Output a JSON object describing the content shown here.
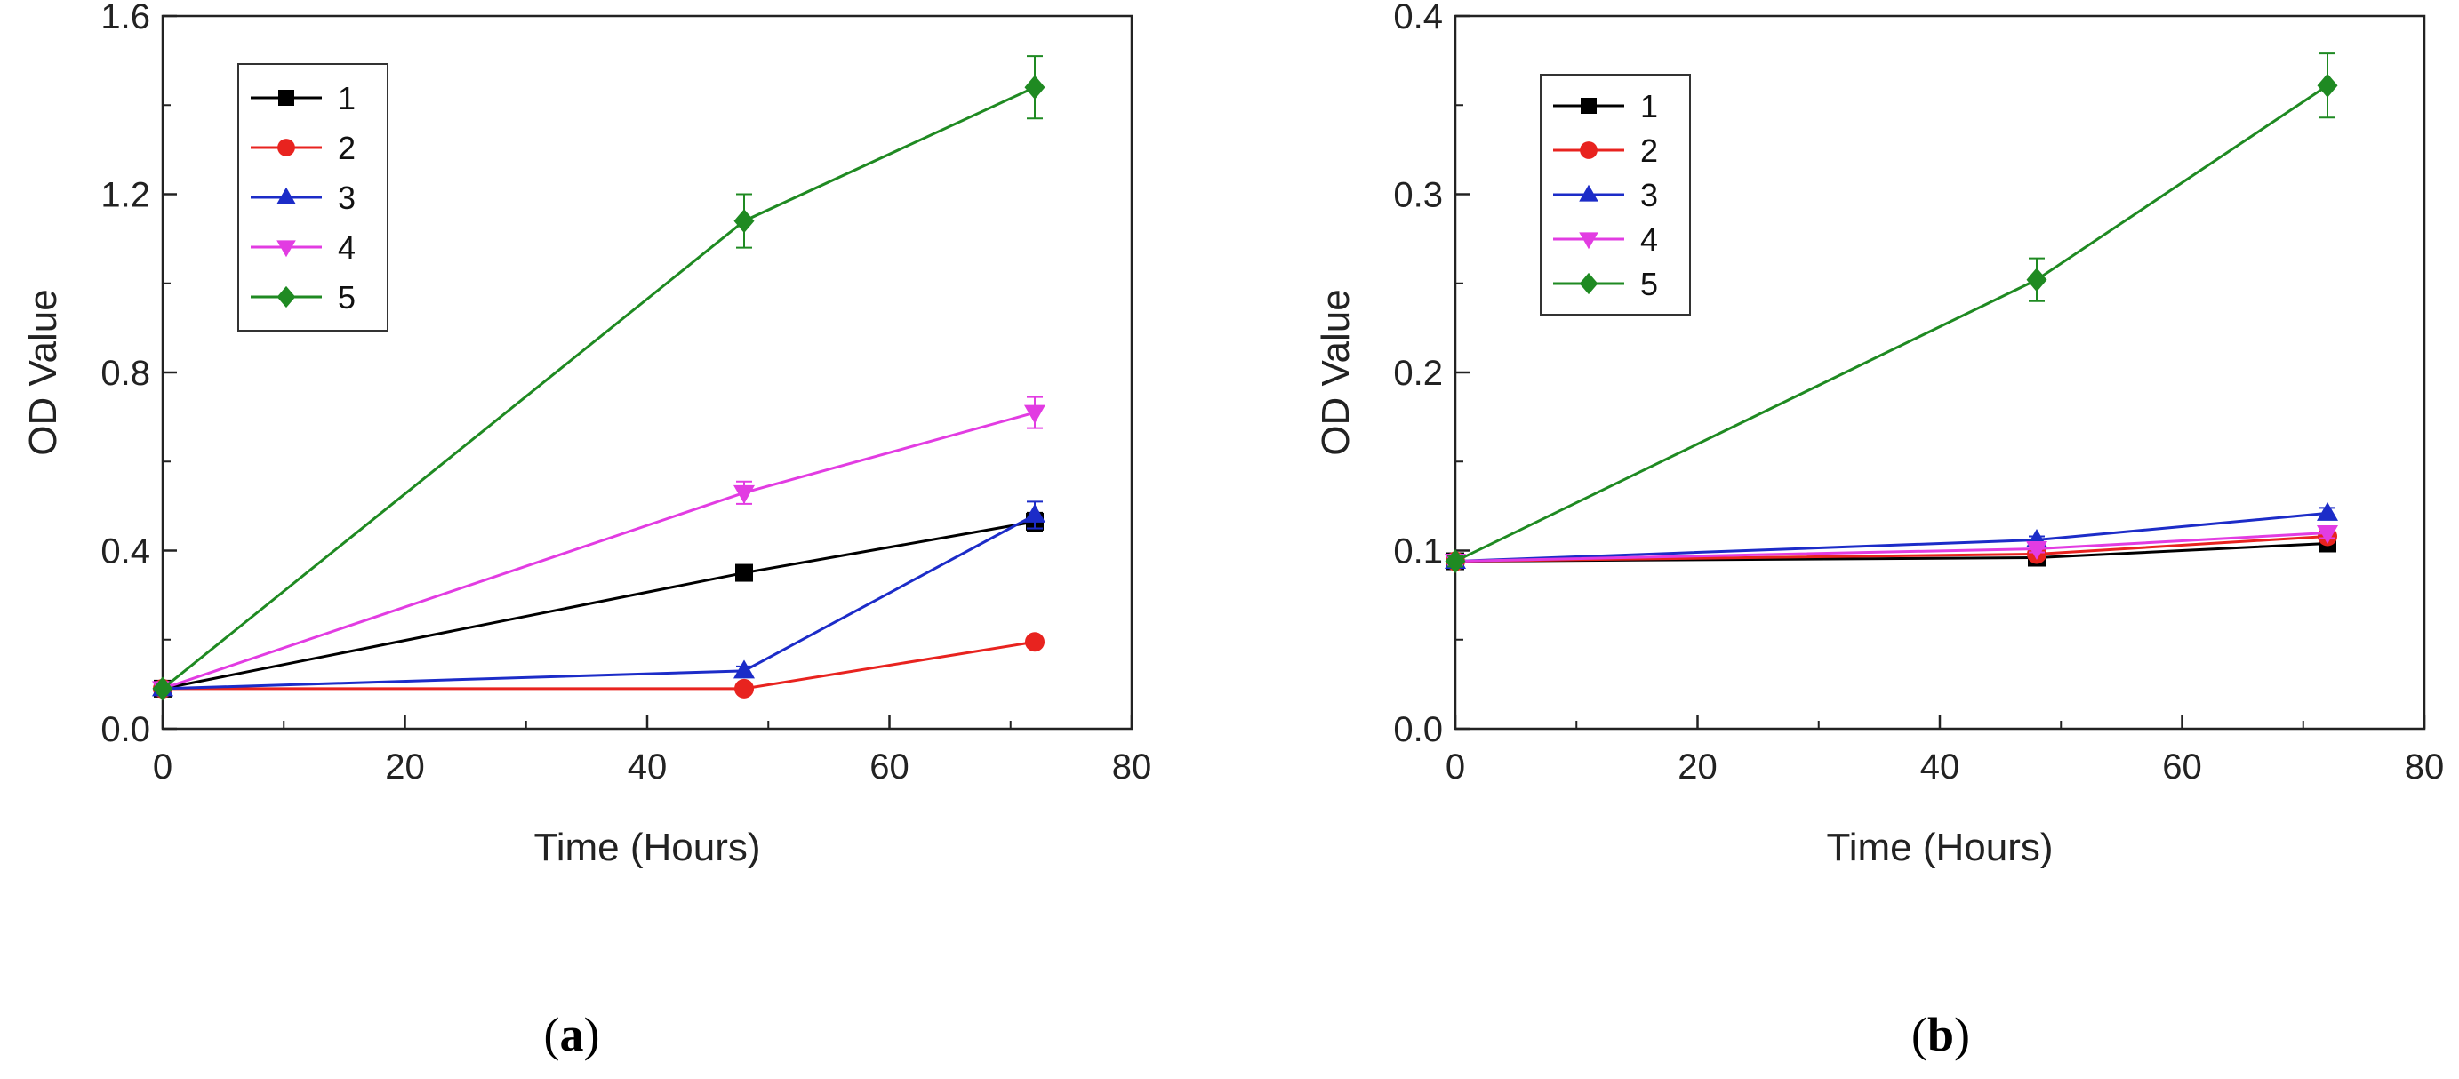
{
  "chart_data": [
    {
      "type": "line",
      "panel_label": "a",
      "title": "",
      "xlabel": "Time (Hours)",
      "ylabel": "OD Value",
      "xlim": [
        0,
        80
      ],
      "ylim": [
        0,
        1.6
      ],
      "xticks": [
        0,
        20,
        40,
        60,
        80
      ],
      "yticks": [
        0.0,
        0.4,
        0.8,
        1.2,
        1.6
      ],
      "xtick_labels": [
        "0",
        "20",
        "40",
        "60",
        "80"
      ],
      "ytick_labels": [
        "0.0",
        "0.4",
        "0.8",
        "1.2",
        "1.6"
      ],
      "x": [
        0,
        48,
        72
      ],
      "legend_position": "top-left",
      "series": [
        {
          "name": "1",
          "color": "#000000",
          "marker": "square",
          "values": [
            0.09,
            0.35,
            0.465
          ],
          "errors": [
            0.005,
            0.01,
            0.02
          ]
        },
        {
          "name": "2",
          "color": "#e8231f",
          "marker": "circle",
          "values": [
            0.09,
            0.09,
            0.195
          ],
          "errors": [
            0.005,
            0.005,
            0.01
          ]
        },
        {
          "name": "3",
          "color": "#1c2cc8",
          "marker": "triangle-up",
          "values": [
            0.09,
            0.13,
            0.48
          ],
          "errors": [
            0.005,
            0.01,
            0.03
          ]
        },
        {
          "name": "4",
          "color": "#e23ce2",
          "marker": "triangle-down",
          "values": [
            0.09,
            0.53,
            0.71
          ],
          "errors": [
            0.005,
            0.025,
            0.035
          ]
        },
        {
          "name": "5",
          "color": "#1f8a22",
          "marker": "diamond",
          "values": [
            0.09,
            1.14,
            1.44
          ],
          "errors": [
            0.005,
            0.06,
            0.07
          ]
        }
      ]
    },
    {
      "type": "line",
      "panel_label": "b",
      "title": "",
      "xlabel": "Time (Hours)",
      "ylabel": "OD Value",
      "xlim": [
        0,
        80
      ],
      "ylim": [
        0,
        0.4
      ],
      "xticks": [
        0,
        20,
        40,
        60,
        80
      ],
      "yticks": [
        0.0,
        0.1,
        0.2,
        0.3,
        0.4
      ],
      "xtick_labels": [
        "0",
        "20",
        "40",
        "60",
        "80"
      ],
      "ytick_labels": [
        "0.0",
        "0.1",
        "0.2",
        "0.3",
        "0.4"
      ],
      "x": [
        0,
        48,
        72
      ],
      "legend_position": "top-left",
      "series": [
        {
          "name": "1",
          "color": "#000000",
          "marker": "square",
          "values": [
            0.094,
            0.096,
            0.104
          ],
          "errors": [
            0.002,
            0.002,
            0.002
          ]
        },
        {
          "name": "2",
          "color": "#e8231f",
          "marker": "circle",
          "values": [
            0.094,
            0.098,
            0.108
          ],
          "errors": [
            0.002,
            0.002,
            0.002
          ]
        },
        {
          "name": "3",
          "color": "#1c2cc8",
          "marker": "triangle-up",
          "values": [
            0.094,
            0.106,
            0.121
          ],
          "errors": [
            0.002,
            0.002,
            0.003
          ]
        },
        {
          "name": "4",
          "color": "#e23ce2",
          "marker": "triangle-down",
          "values": [
            0.094,
            0.101,
            0.11
          ],
          "errors": [
            0.002,
            0.002,
            0.003
          ]
        },
        {
          "name": "5",
          "color": "#1f8a22",
          "marker": "diamond",
          "values": [
            0.094,
            0.252,
            0.361
          ],
          "errors": [
            0.003,
            0.012,
            0.018
          ]
        }
      ]
    }
  ]
}
